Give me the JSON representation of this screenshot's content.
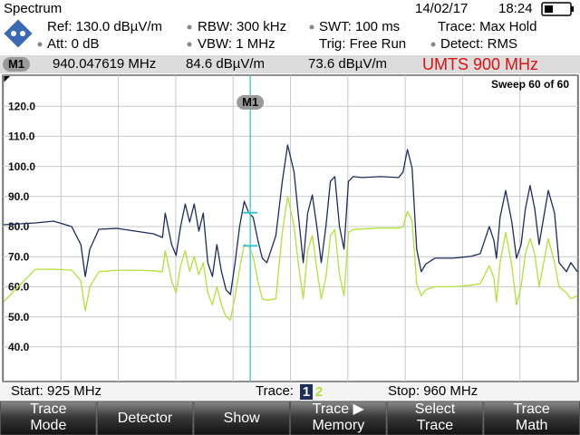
{
  "header": {
    "title": "Spectrum",
    "date": "14/02/17",
    "time": "18:24",
    "row1": [
      "Ref: 130.0 dBµV/m",
      "RBW: 300 kHz",
      "SWT: 100 ms",
      "Trace: Max Hold"
    ],
    "row2": [
      "Att: 0 dB",
      "VBW: 1 MHz",
      "Trig: Free Run",
      "Detect: RMS"
    ]
  },
  "marker_bar": {
    "standard": "UMTS 900 MHz"
  },
  "chart_data": {
    "type": "line",
    "sweep": "Sweep 60 of 60",
    "xlim": [
      925,
      960
    ],
    "ylim": [
      30,
      130
    ],
    "xticks": [
      925,
      928.5,
      932,
      935.5,
      939,
      942.5,
      946,
      949.5,
      953,
      956.5,
      960
    ],
    "yticks": [
      {
        "value": 40,
        "label": "40.0"
      },
      {
        "value": 50,
        "label": "50.0"
      },
      {
        "value": 60,
        "label": "60.0"
      },
      {
        "value": 70,
        "label": "70.0"
      },
      {
        "value": 80,
        "label": "80.0"
      },
      {
        "value": 90,
        "label": "90.0"
      },
      {
        "value": 100,
        "label": "100.0"
      },
      {
        "value": 110,
        "label": "110.0"
      },
      {
        "value": 120,
        "label": "120.0"
      }
    ],
    "grid": true,
    "x": [
      925.0,
      926.94,
      928.05,
      929.15,
      929.71,
      929.98,
      930.26,
      930.81,
      931.92,
      933.03,
      934.14,
      934.69,
      934.86,
      935.25,
      935.52,
      935.8,
      936.08,
      936.35,
      936.63,
      936.91,
      937.18,
      937.46,
      937.74,
      938.01,
      938.29,
      938.57,
      938.84,
      939.12,
      939.4,
      939.68,
      939.95,
      940.23,
      940.51,
      940.78,
      941.06,
      941.61,
      942.0,
      942.33,
      942.72,
      943.0,
      943.28,
      943.55,
      943.83,
      944.11,
      944.38,
      944.66,
      944.94,
      945.21,
      945.49,
      945.77,
      946.04,
      946.32,
      946.87,
      947.98,
      949.09,
      949.37,
      949.64,
      949.92,
      950.2,
      950.48,
      950.75,
      951.31,
      952.41,
      953.52,
      954.08,
      954.63,
      954.91,
      955.07,
      955.29,
      955.63,
      956.01,
      956.29,
      956.57,
      956.84,
      957.12,
      957.4,
      957.67,
      957.95,
      958.23,
      958.61,
      958.89,
      959.34,
      959.61,
      960.0
    ],
    "series": [
      {
        "name": "1",
        "color": "#1c2d5e",
        "values": [
          80.6,
          81.2,
          81.8,
          80,
          74,
          63.4,
          72.5,
          79.1,
          79.4,
          78.5,
          77.6,
          76.4,
          84.5,
          74,
          70.4,
          80,
          87.5,
          81.5,
          87.5,
          78.5,
          84.5,
          68,
          63.4,
          74,
          65,
          59,
          57.4,
          68,
          80,
          88.4,
          84.6,
          83,
          75.5,
          69.5,
          68,
          77,
          95,
          107.1,
          98.1,
          83,
          68,
          84.5,
          90.5,
          80,
          68,
          80,
          95,
          96.6,
          80,
          72.5,
          95,
          96.6,
          96.3,
          96.6,
          96.3,
          98.1,
          105.6,
          99.5,
          72.5,
          65,
          67.5,
          69.5,
          69.5,
          70.1,
          71,
          80,
          75.5,
          69.5,
          83,
          92,
          81.5,
          69.5,
          74,
          86,
          93.6,
          86,
          74,
          83,
          92,
          84.5,
          68,
          65,
          68,
          65
        ]
      },
      {
        "name": "2",
        "color": "#b4e03a",
        "values": [
          55,
          65.8,
          65.8,
          65.5,
          62,
          52,
          60,
          65,
          65.5,
          65.5,
          65.3,
          65,
          72,
          62,
          58,
          67,
          72,
          65,
          70,
          64,
          68,
          58,
          54,
          60,
          54,
          50,
          49,
          57,
          66,
          74,
          73.6,
          70,
          62,
          56,
          55.5,
          56,
          78,
          90,
          80,
          67,
          56,
          72,
          77,
          66,
          56,
          63,
          77,
          79,
          64,
          57,
          78,
          79,
          79.2,
          79.5,
          79.5,
          80,
          85,
          82,
          61,
          57,
          59,
          60,
          60,
          60.5,
          61,
          67,
          63,
          55,
          68,
          78,
          67,
          54,
          60,
          71,
          76,
          71,
          60,
          68,
          76,
          68,
          60,
          58,
          56,
          57
        ]
      }
    ],
    "marker": {
      "name": "M1",
      "x": 940.047619,
      "x_label": "940.047619 MHz",
      "values": [
        84.6,
        73.6
      ],
      "value_labels": [
        "84.6 dBµV/m",
        "73.6 dBµV/m"
      ]
    }
  },
  "footer": {
    "start": "Start: 925 MHz",
    "trace_label": "Trace:",
    "stop": "Stop: 960 MHz"
  },
  "softkeys": [
    {
      "lines": [
        "Trace",
        "Mode"
      ]
    },
    {
      "lines": [
        "Detector"
      ]
    },
    {
      "lines": [
        "Show"
      ]
    },
    {
      "lines": [
        "Trace ▶",
        "Memory"
      ]
    },
    {
      "lines": [
        "Select",
        "Trace"
      ]
    },
    {
      "lines": [
        "Trace",
        "Math"
      ]
    }
  ]
}
